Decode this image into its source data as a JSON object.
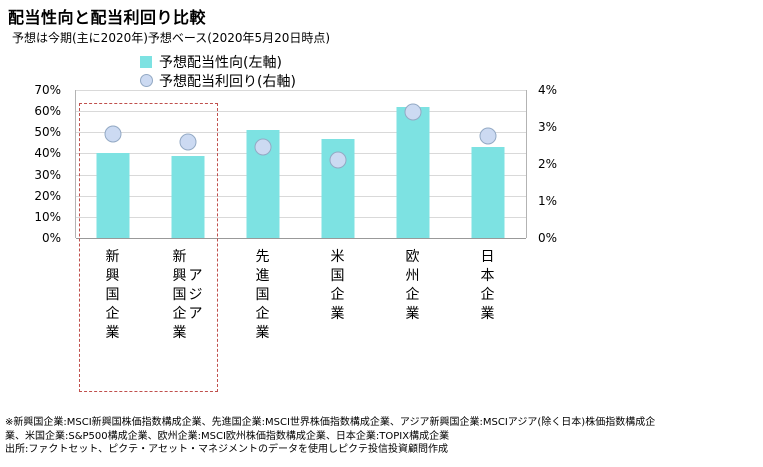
{
  "title": "配当性向と配当利回り比較",
  "subtitle": "予想は今期(主に2020年)予想ベース(2020年5月20日時点)",
  "legend": [
    {
      "label": "予想配当性向(左軸)",
      "marker": "square"
    },
    {
      "label": "予想配当利回り(右軸)",
      "marker": "circle"
    }
  ],
  "chart_data": {
    "type": "bar",
    "title": "配当性向と配当利回り比較",
    "categories": [
      "新興国企業",
      "アジア新興国企業",
      "先進国企業",
      "米国企業",
      "欧州企業",
      "日本企業"
    ],
    "category_columns": [
      [
        "新興国企業"
      ],
      [
        "新興国企業",
        "アジア"
      ],
      [
        "先進国企業"
      ],
      [
        "米国企業"
      ],
      [
        "欧州企業"
      ],
      [
        "日本企業"
      ]
    ],
    "series": [
      {
        "name": "予想配当性向(左軸)",
        "type": "bar",
        "axis": "left",
        "values": [
          40,
          39,
          51,
          47,
          62,
          43
        ]
      },
      {
        "name": "予想配当利回り(右軸)",
        "type": "scatter",
        "axis": "right",
        "values": [
          2.8,
          2.6,
          2.45,
          2.1,
          3.4,
          2.75
        ]
      }
    ],
    "left_axis": {
      "min": 0,
      "max": 70,
      "step": 10,
      "unit": "%"
    },
    "right_axis": {
      "min": 0,
      "max": 4,
      "step": 1,
      "unit": "%"
    },
    "bar_color": "#7DE2E2",
    "marker_fill": "#CCDAF2",
    "marker_border": "#93A9C4",
    "highlight_box": {
      "style": "dashed",
      "color": "#C0504D",
      "category_indexes": [
        0,
        1
      ]
    },
    "grid": true,
    "legend_position": "top"
  },
  "footnotes": [
    "※新興国企業:MSCI新興国株価指数構成企業、先進国企業:MSCI世界株価指数構成企業、アジア新興国企業:MSCIアジア(除く日本)株価指数構成企",
    "業、米国企業:S&P500構成企業、欧州企業:MSCI欧州株価指数構成企業、日本企業:TOPIX構成企業",
    "出所:ファクトセット、ピクテ・アセット・マネジメントのデータを使用しピクテ投信投資顧問作成"
  ]
}
